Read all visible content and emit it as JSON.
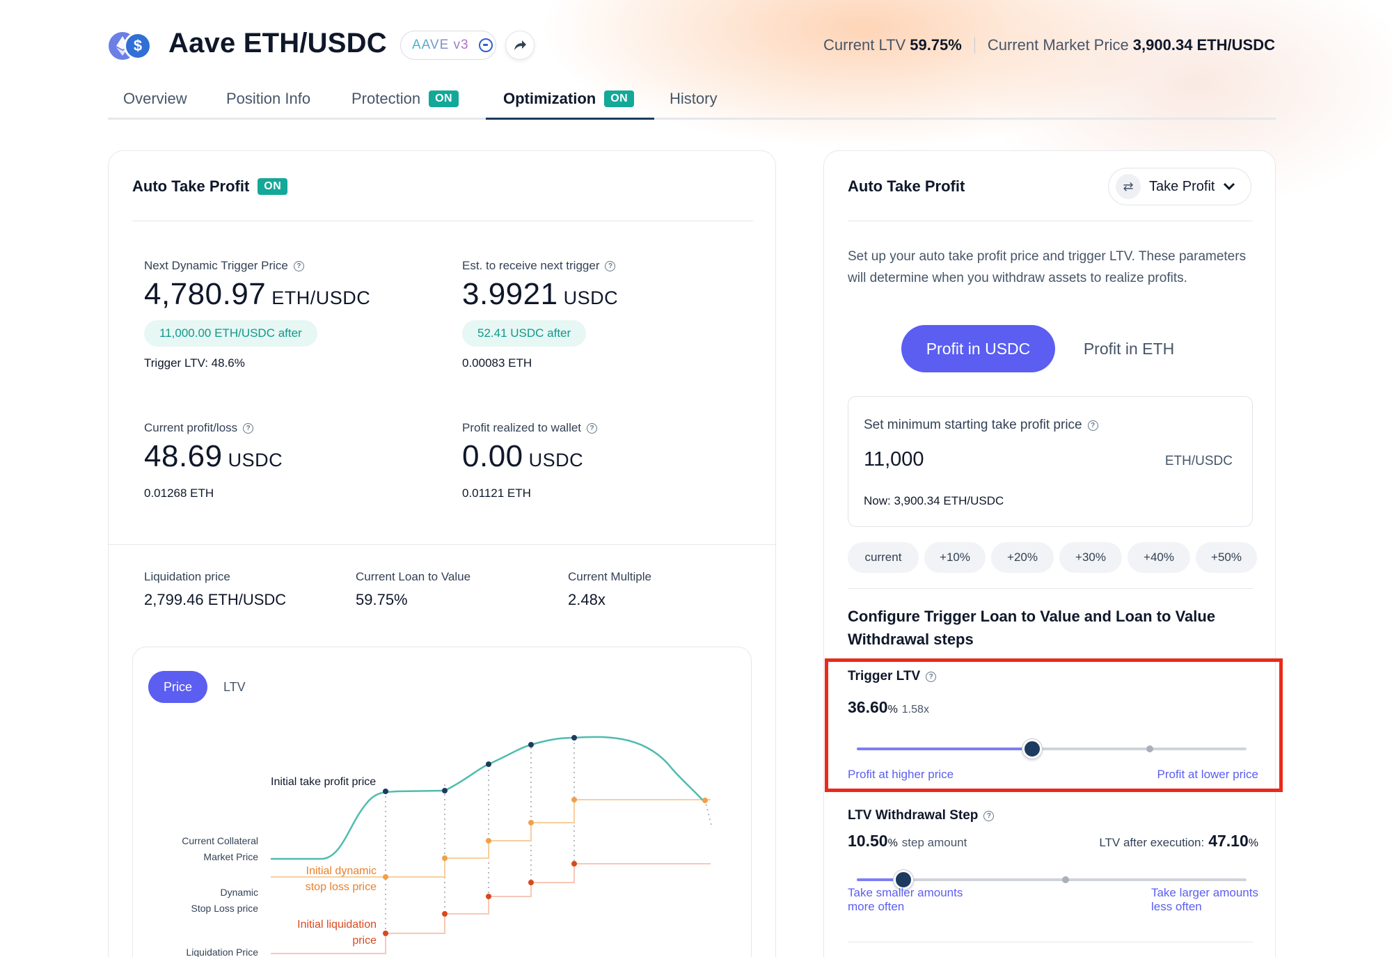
{
  "header": {
    "title": "Aave ETH/USDC",
    "protocol_badge": "AAVE v3",
    "current_ltv_label": "Current LTV",
    "current_ltv_value": "59.75%",
    "market_price_label": "Current Market Price",
    "market_price_value": "3,900.34 ETH/USDC"
  },
  "tabs": [
    {
      "label": "Overview"
    },
    {
      "label": "Position Info"
    },
    {
      "label": "Protection",
      "badge": "ON"
    },
    {
      "label": "Optimization",
      "badge": "ON",
      "active": true
    },
    {
      "label": "History"
    }
  ],
  "left_card": {
    "title": "Auto Take Profit",
    "badge": "ON",
    "next_trigger": {
      "label": "Next Dynamic Trigger Price",
      "value": "4,780.97",
      "unit": "ETH/USDC",
      "pill": "11,000.00 ETH/USDC after",
      "sub": "Trigger LTV: 48.6%"
    },
    "est_receive": {
      "label": "Est. to receive next trigger",
      "value": "3.9921",
      "unit": "USDC",
      "pill": "52.41 USDC after",
      "sub": "0.00083 ETH"
    },
    "profit_loss": {
      "label": "Current profit/loss",
      "value": "48.69",
      "unit": "USDC",
      "sub": "0.01268 ETH"
    },
    "profit_realized": {
      "label": "Profit realized to wallet",
      "value": "0.00",
      "unit": "USDC",
      "sub": "0.01121 ETH"
    },
    "metrics": [
      {
        "label": "Liquidation price",
        "value": "2,799.46 ETH/USDC"
      },
      {
        "label": "Current Loan to Value",
        "value": "59.75%"
      },
      {
        "label": "Current Multiple",
        "value": "2.48x"
      }
    ],
    "chart": {
      "toggle_on": "Price",
      "toggle_off": "LTV",
      "labels": {
        "initial_tp": "Initial take profit price",
        "collateral_1": "Current Collateral",
        "collateral_2": "Market Price",
        "dyn_stop_1": "Dynamic",
        "dyn_stop_2": "Stop Loss price",
        "init_dyn_stop_1": "Initial dynamic",
        "init_dyn_stop_2": "stop loss price",
        "init_liq_1": "Initial liquidation",
        "init_liq_2": "price",
        "liq_price": "Liquidation Price"
      },
      "colors": {
        "teal": "#4fbcae",
        "orange": "#f0a04b",
        "red": "#d9481e",
        "navy": "#1e3a5f"
      }
    }
  },
  "right_card": {
    "title": "Auto Take Profit",
    "select_label": "Take Profit",
    "description": "Set up your auto take profit price and trigger LTV. These parameters will determine when you withdraw assets to realize profits.",
    "segment_on": "Profit in USDC",
    "segment_off": "Profit in ETH",
    "min_price": {
      "label": "Set minimum starting take profit price",
      "value": "11,000",
      "unit": "ETH/USDC",
      "now": "Now: 3,900.34 ETH/USDC"
    },
    "chips": [
      "current",
      "+10%",
      "+20%",
      "+30%",
      "+40%",
      "+50%"
    ],
    "config_title": "Configure Trigger Loan to Value and Loan to Value Withdrawal steps",
    "trigger_ltv": {
      "label": "Trigger LTV",
      "value": "36.60",
      "pct": "%",
      "multiple": "1.58x",
      "slider_fraction": 0.45,
      "hint_left": "Profit at higher price",
      "hint_right": "Profit at lower price"
    },
    "withdrawal_step": {
      "label": "LTV Withdrawal Step",
      "value": "10.50",
      "pct": "%",
      "step_text": "step amount",
      "after_label": "LTV after execution:",
      "after_value": "47.10",
      "after_pct": "%",
      "slider_fraction": 0.12,
      "hint_left_1": "Take smaller amounts",
      "hint_left_2": "more often",
      "hint_right_1": "Take larger amounts",
      "hint_right_2": "less often"
    }
  },
  "colors": {
    "accent": "#5b5ef0",
    "teal_badge": "#14a899",
    "highlight": "#ea2a1a"
  }
}
